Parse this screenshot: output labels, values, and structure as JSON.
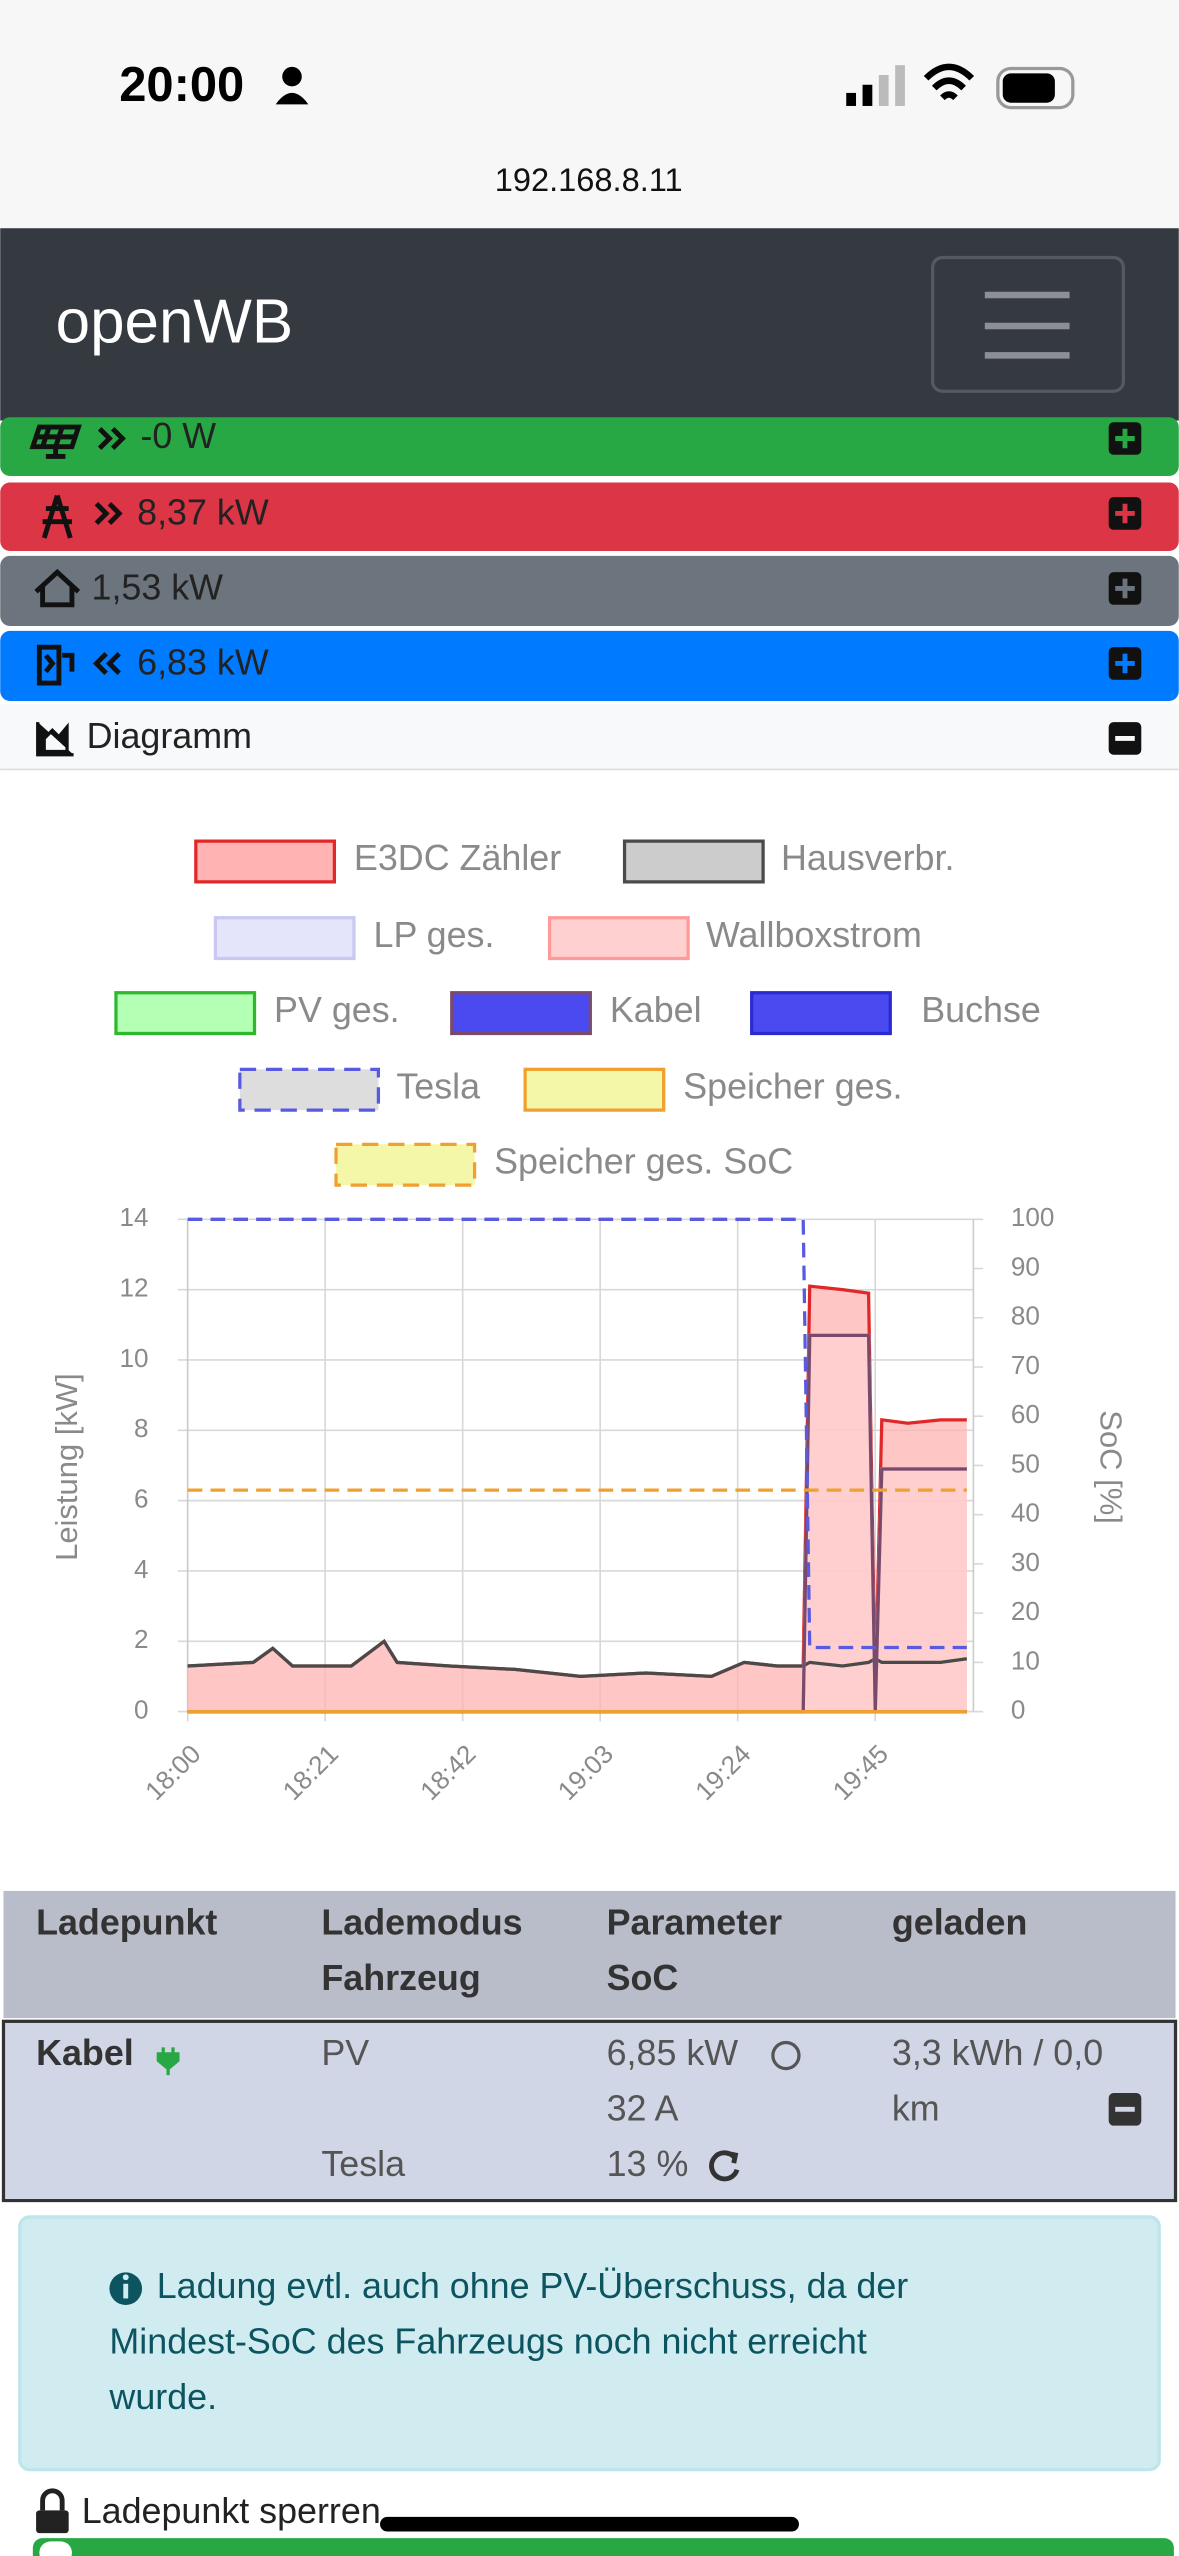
{
  "status_bar": {
    "time": "20:00"
  },
  "url": "192.168.8.11",
  "navbar": {
    "brand": "openWB"
  },
  "summary": [
    "-0 W",
    "8,37 kW",
    "1,53 kW",
    "6,83 kW"
  ],
  "diagram_title": "Diagramm",
  "chart_data": {
    "type": "line",
    "ylabel": "Leistung [kW]",
    "y2label": "SoC [%]",
    "x": [
      "18:00",
      "18:10",
      "18:13",
      "18:16",
      "18:25",
      "18:30",
      "18:32",
      "18:40",
      "18:50",
      "19:00",
      "19:10",
      "19:20",
      "19:25",
      "19:30",
      "19:34",
      "19:35",
      "19:40",
      "19:44",
      "19:45",
      "19:46",
      "19:50",
      "19:55",
      "19:59"
    ],
    "xlim": [
      "18:00",
      "20:00"
    ],
    "xticks": [
      "18:00",
      "18:21",
      "18:42",
      "19:03",
      "19:24",
      "19:45"
    ],
    "ylim": [
      0,
      14
    ],
    "yticks": [
      0,
      2,
      4,
      6,
      8,
      10,
      12,
      14
    ],
    "y2lim": [
      0,
      100
    ],
    "y2ticks": [
      0,
      10,
      20,
      30,
      40,
      50,
      60,
      70,
      80,
      90,
      100
    ],
    "grid": true,
    "series": [
      {
        "name": "E3DC Zähler",
        "color": "#e02828",
        "fill_color": "#ffb3b3",
        "fill": true,
        "dashed": false,
        "values": [
          1.3,
          1.4,
          1.8,
          1.3,
          1.3,
          2.0,
          1.4,
          1.3,
          1.2,
          1.0,
          1.1,
          1.0,
          1.4,
          1.3,
          1.3,
          12.1,
          12.0,
          11.9,
          0.5,
          8.3,
          8.2,
          8.3,
          8.3
        ]
      },
      {
        "name": "Hausverbr.",
        "color": "#4a4a4a",
        "fill_color": "#cccccc",
        "fill": false,
        "dashed": false,
        "values": [
          1.3,
          1.4,
          1.8,
          1.3,
          1.3,
          2.0,
          1.4,
          1.3,
          1.2,
          1.0,
          1.1,
          1.0,
          1.4,
          1.3,
          1.3,
          1.4,
          1.3,
          1.4,
          1.5,
          1.4,
          1.4,
          1.4,
          1.5
        ]
      },
      {
        "name": "LP ges.",
        "color": "#c8c8f0",
        "fill_color": "#e4e4fa",
        "fill": false,
        "dashed": false,
        "values": [
          0,
          0,
          0,
          0,
          0,
          0,
          0,
          0,
          0,
          0,
          0,
          0,
          0,
          0,
          0,
          10.7,
          10.7,
          10.7,
          0,
          6.9,
          6.9,
          6.9,
          6.9
        ]
      },
      {
        "name": "Wallboxstrom",
        "color": "#ff9a9a",
        "fill_color": "#ffd0d0",
        "fill": true,
        "dashed": false,
        "values": [
          0,
          0,
          0,
          0,
          0,
          0,
          0,
          0,
          0,
          0,
          0,
          0,
          0,
          0,
          0,
          10.7,
          10.7,
          10.7,
          0,
          6.9,
          6.9,
          6.9,
          6.9
        ]
      },
      {
        "name": "PV ges.",
        "color": "#2eb82e",
        "fill_color": "#b3ffb3",
        "fill": false,
        "dashed": false,
        "values": [
          0,
          0,
          0,
          0,
          0,
          0,
          0,
          0,
          0,
          0,
          0,
          0,
          0,
          0,
          0,
          0,
          0,
          0,
          0,
          0,
          0,
          0,
          0
        ]
      },
      {
        "name": "Kabel",
        "color": "#7a4a6a",
        "fill_color": "#4a4af0",
        "fill": false,
        "dashed": false,
        "values": [
          0,
          0,
          0,
          0,
          0,
          0,
          0,
          0,
          0,
          0,
          0,
          0,
          0,
          0,
          0,
          10.7,
          10.7,
          10.7,
          0,
          6.9,
          6.9,
          6.9,
          6.9
        ]
      },
      {
        "name": "Buchse",
        "color": "#2a2ad0",
        "fill_color": "#4a4af0",
        "fill": false,
        "dashed": false,
        "values": [
          0,
          0,
          0,
          0,
          0,
          0,
          0,
          0,
          0,
          0,
          0,
          0,
          0,
          0,
          0,
          0,
          0,
          0,
          0,
          0,
          0,
          0,
          0
        ]
      },
      {
        "name": "Tesla",
        "color": "#5a5ae0",
        "fill_color": "#dddddd",
        "fill": false,
        "dashed": true,
        "axis": "y2",
        "values": [
          100,
          100,
          100,
          100,
          100,
          100,
          100,
          100,
          100,
          100,
          100,
          100,
          100,
          100,
          100,
          13,
          13,
          13,
          13,
          13,
          13,
          13,
          13
        ]
      },
      {
        "name": "Speicher ges.",
        "color": "#f0a030",
        "fill_color": "#f5f7a8",
        "fill": false,
        "dashed": false,
        "values": [
          0,
          0,
          0,
          0,
          0,
          0,
          0,
          0,
          0,
          0,
          0,
          0,
          0,
          0,
          0,
          0,
          0,
          0,
          0,
          0,
          0,
          0,
          0
        ]
      },
      {
        "name": "Speicher ges. SoC",
        "color": "#f0a030",
        "fill_color": "#f5f7a8",
        "fill": false,
        "dashed": true,
        "axis": "y2",
        "values": [
          45,
          45,
          45,
          45,
          45,
          45,
          45,
          45,
          45,
          45,
          45,
          45,
          45,
          45,
          45,
          45,
          45,
          45,
          45,
          45,
          45,
          45,
          45
        ]
      }
    ]
  },
  "table": {
    "headers": [
      "Ladepunkt",
      [
        "Lademodus",
        "Fahrzeug"
      ],
      [
        "Parameter",
        "SoC"
      ],
      "geladen"
    ],
    "rows": [
      {
        "ladepunkt": "Kabel",
        "lademodus": "PV",
        "fahrzeug": "Tesla",
        "parameter": [
          "6,85 kW",
          "32 A"
        ],
        "soc": "13 %",
        "geladen": [
          "3,3 kWh / 0,0",
          "km"
        ]
      }
    ]
  },
  "alert": [
    "Ladung evtl. auch ohne PV-Überschuss, da der",
    "Mindest-SoC des Fahrzeugs noch nicht erreicht",
    "wurde."
  ],
  "lock_label": "Ladepunkt sperren"
}
